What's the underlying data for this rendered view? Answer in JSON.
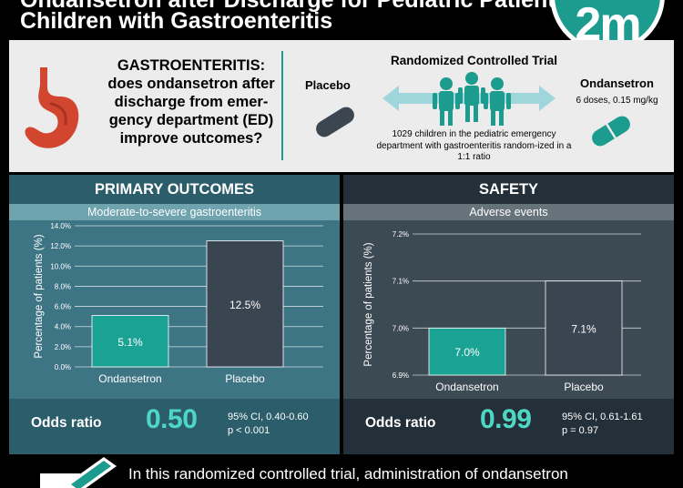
{
  "header": {
    "title_line1": "Ondansetron after Discharge for Pediatric Patients",
    "title_line2": "Children with Gastroenteritis",
    "logo_text": "2m"
  },
  "intro": {
    "question": "GASTROENTERITIS: does ondansetron after discharge from emer-gency department (ED) improve outcomes?",
    "placebo_label": "Placebo",
    "rct_title": "Randomized Controlled Trial",
    "rct_description": "1029 children in the pediatric emergency department with gastroenteritis random-ized in a 1:1 ratio",
    "ondansetron_label": "Ondansetron",
    "ondansetron_dose": "6 doses, 0.15 mg/kg"
  },
  "primary": {
    "heading": "PRIMARY OUTCOMES",
    "subheading": "Moderate-to-severe gastroenteritis",
    "odds_ratio_label": "Odds ratio",
    "odds_ratio_value": "0.50",
    "ci": "95% CI, 0.40-0.60",
    "p": "p < 0.001"
  },
  "safety": {
    "heading": "SAFETY",
    "subheading": "Adverse events",
    "odds_ratio_label": "Odds ratio",
    "odds_ratio_value": "0.99",
    "ci": "95% CI, 0.61-1.61",
    "p": "p = 0.97"
  },
  "chart_data": [
    {
      "type": "bar",
      "title": "Moderate-to-severe gastroenteritis",
      "ylabel": "Percentage of patients (%)",
      "categories": [
        "Ondansetron",
        "Placebo"
      ],
      "values": [
        5.1,
        12.5
      ],
      "data_labels": [
        "5.1%",
        "12.5%"
      ],
      "ylim": [
        0,
        14
      ],
      "yticks": [
        0,
        2,
        4,
        6,
        8,
        10,
        12,
        14
      ],
      "ytick_labels": [
        "0.0%",
        "2.0%",
        "4.0%",
        "6.0%",
        "8.0%",
        "10.0%",
        "12.0%",
        "14.0%"
      ],
      "colors": [
        "#1aa394",
        "#3a4552"
      ],
      "grid": true
    },
    {
      "type": "bar",
      "title": "Adverse events",
      "ylabel": "Percentage of patients (%)",
      "categories": [
        "Ondansetron",
        "Placebo"
      ],
      "values": [
        7.0,
        7.1
      ],
      "data_labels": [
        "7.0%",
        "7.1%"
      ],
      "ylim": [
        6.9,
        7.2
      ],
      "yticks": [
        6.9,
        7.0,
        7.1,
        7.2
      ],
      "ytick_labels": [
        "6.9%",
        "7.0%",
        "7.1%",
        "7.2%"
      ],
      "colors": [
        "#1aa394",
        "#3a4552"
      ],
      "grid": true
    }
  ],
  "conclusion": {
    "text": "In this randomized controlled trial, administration of ondansetron"
  },
  "colors": {
    "teal": "#1c9b8f",
    "stomach": "#d2462f",
    "placebo_pill": "#3b4650"
  },
  "icons": [
    "stomach-icon",
    "placebo-pill-icon",
    "ondansetron-pill-icon",
    "people-icon",
    "double-arrow-icon",
    "pen-icon"
  ]
}
